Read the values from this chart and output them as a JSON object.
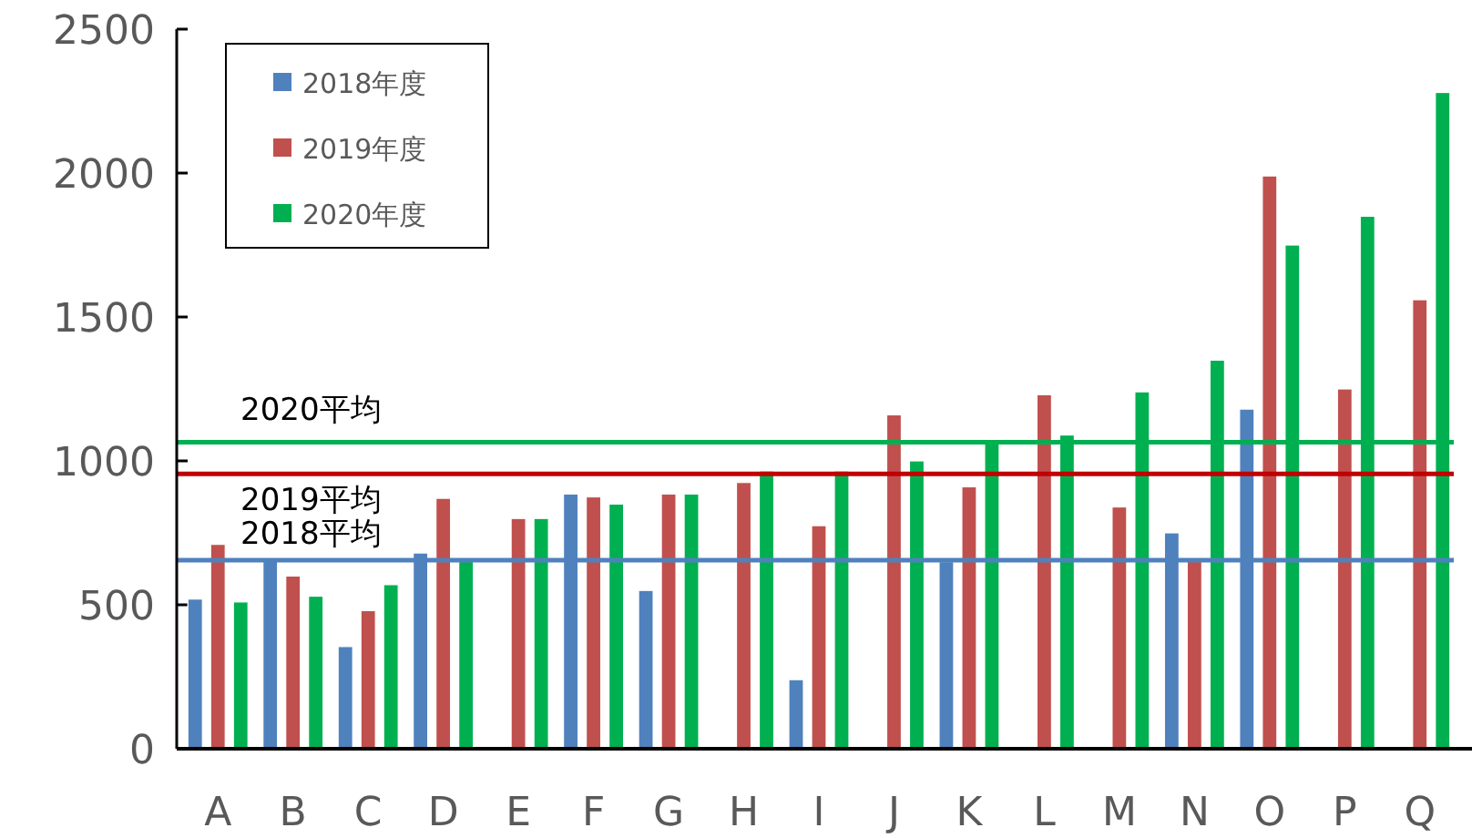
{
  "chart_data": {
    "type": "bar",
    "categories": [
      "A",
      "B",
      "C",
      "D",
      "E",
      "F",
      "G",
      "H",
      "I",
      "J",
      "K",
      "L",
      "M",
      "N",
      "O",
      "P",
      "Q"
    ],
    "series": [
      {
        "name": "2018年度",
        "color": "#4f81bd",
        "values": [
          520,
          655,
          355,
          680,
          null,
          885,
          550,
          null,
          240,
          null,
          650,
          null,
          null,
          750,
          1180,
          null,
          null
        ]
      },
      {
        "name": "2019年度",
        "color": "#c0504d",
        "values": [
          710,
          600,
          480,
          870,
          800,
          875,
          885,
          925,
          775,
          1160,
          910,
          1230,
          840,
          655,
          1990,
          1250,
          1560
        ]
      },
      {
        "name": "2020年度",
        "color": "#00b050",
        "values": [
          510,
          530,
          570,
          655,
          800,
          850,
          885,
          965,
          965,
          1000,
          1060,
          1090,
          1240,
          1350,
          1750,
          1850,
          2280
        ]
      }
    ],
    "ylim": [
      0,
      2500
    ],
    "yticks": [
      0,
      500,
      1000,
      1500,
      2000,
      2500
    ],
    "grid": false,
    "legend": "top left",
    "ref_lines": [
      {
        "axis": "y",
        "value": 1065,
        "label": "2020平均",
        "color": "#00b050"
      },
      {
        "axis": "y",
        "value": 955,
        "label": "2019平均",
        "color": "#c00000"
      },
      {
        "axis": "y",
        "value": 655,
        "label": "2018平均",
        "color": "#4f81bd"
      }
    ]
  }
}
